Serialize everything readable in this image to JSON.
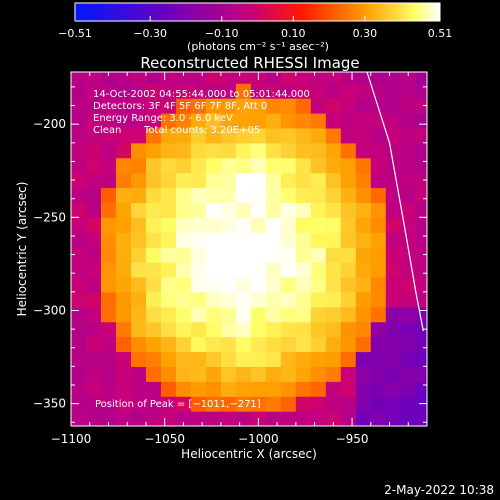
{
  "chart_data": {
    "type": "heatmap",
    "title": "Reconstructed RHESSI Image",
    "xlabel": "Heliocentric X (arcsec)",
    "ylabel": "Heliocentric Y (arcsec)",
    "xlim": [
      -1100,
      -910
    ],
    "ylim": [
      -362,
      -172
    ],
    "xticks": [
      -1100,
      -1050,
      -1000,
      -950
    ],
    "xtick_labels": [
      "−1100",
      "−1050",
      "−1000",
      "−950"
    ],
    "yticks": [
      -200,
      -250,
      -300,
      -350
    ],
    "ytick_labels": [
      "−200",
      "−250",
      "−300",
      "−350"
    ],
    "colorbar": {
      "min": -0.51,
      "max": 0.51,
      "ticks": [
        -0.51,
        -0.3,
        -0.1,
        0.1,
        0.3,
        0.51
      ],
      "tick_labels": [
        "−0.51",
        "−0.30",
        "−0.10",
        "0.10",
        "0.30",
        "0.51"
      ],
      "unit_label": "(photons cm⁻² s⁻¹ asec⁻²)"
    },
    "annotations": {
      "time_range": "14-Oct-2002 04:55:44.000 to 05:01:44.000",
      "detectors": "Detectors: 3F 4F 5F 6F 7F 8F, Att 0",
      "energy_range": "Energy Range: 3.0 - 6.0 keV",
      "clean": "Clean",
      "total_counts": "Total counts: 3.20E+05",
      "peak_position": "Position of Peak = [−1011,−271]"
    },
    "peak": [
      -1011,
      -271
    ],
    "limb_curve": [
      [
        -942,
        -172
      ],
      [
        -930,
        -210
      ],
      [
        -922,
        -255
      ],
      [
        -916,
        -290
      ],
      [
        -912,
        -311
      ]
    ],
    "grid": false
  },
  "footer": {
    "timestamp": "2-May-2022 10:38"
  },
  "colors": {
    "background": "#000000",
    "text": "#ffffff",
    "colormap": [
      "#0000ff",
      "#5a00b4",
      "#ff0000",
      "#ff9900",
      "#ffff66",
      "#ffffff"
    ]
  }
}
